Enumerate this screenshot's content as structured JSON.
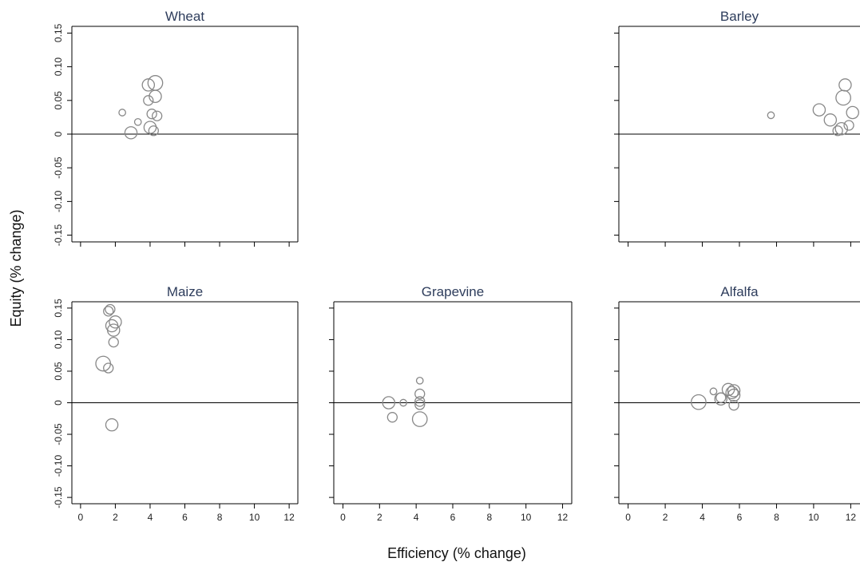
{
  "figure": {
    "xlabel": "Efficiency (% change)",
    "ylabel": "Equity (% change)"
  },
  "chart_data": [
    {
      "type": "scatter",
      "title": "Wheat",
      "xlim": [
        -0.5,
        12.5
      ],
      "ylim": [
        -0.16,
        0.16
      ],
      "zero_line": true,
      "show_x_tick_labels": false,
      "points": [
        {
          "x": 2.4,
          "y": 0.032,
          "size": 1
        },
        {
          "x": 2.9,
          "y": 0.002,
          "size": 3
        },
        {
          "x": 3.3,
          "y": 0.018,
          "size": 1
        },
        {
          "x": 3.9,
          "y": 0.073,
          "size": 3
        },
        {
          "x": 3.9,
          "y": 0.05,
          "size": 2
        },
        {
          "x": 4.1,
          "y": 0.03,
          "size": 2
        },
        {
          "x": 4.0,
          "y": 0.01,
          "size": 3
        },
        {
          "x": 4.2,
          "y": 0.005,
          "size": 2
        },
        {
          "x": 4.3,
          "y": 0.076,
          "size": 4
        },
        {
          "x": 4.3,
          "y": 0.056,
          "size": 3
        },
        {
          "x": 4.4,
          "y": 0.027,
          "size": 2
        }
      ]
    },
    {
      "type": "scatter",
      "title": "Barley",
      "xlim": [
        -0.5,
        12.5
      ],
      "ylim": [
        -0.16,
        0.16
      ],
      "zero_line": true,
      "show_x_tick_labels": false,
      "points": [
        {
          "x": 7.7,
          "y": 0.028,
          "size": 1
        },
        {
          "x": 10.3,
          "y": 0.036,
          "size": 3
        },
        {
          "x": 10.9,
          "y": 0.021,
          "size": 3
        },
        {
          "x": 11.3,
          "y": 0.005,
          "size": 2
        },
        {
          "x": 11.5,
          "y": 0.008,
          "size": 3
        },
        {
          "x": 11.6,
          "y": 0.054,
          "size": 4
        },
        {
          "x": 11.7,
          "y": 0.073,
          "size": 3
        },
        {
          "x": 11.9,
          "y": 0.013,
          "size": 2
        },
        {
          "x": 12.1,
          "y": 0.032,
          "size": 3
        }
      ]
    },
    {
      "type": "scatter",
      "title": "Maize",
      "xlim": [
        -0.5,
        12.5
      ],
      "ylim": [
        -0.16,
        0.16
      ],
      "zero_line": true,
      "show_x_tick_labels": true,
      "points": [
        {
          "x": 1.3,
          "y": 0.062,
          "size": 4
        },
        {
          "x": 1.6,
          "y": 0.055,
          "size": 2
        },
        {
          "x": 1.6,
          "y": 0.145,
          "size": 2
        },
        {
          "x": 1.7,
          "y": 0.148,
          "size": 2
        },
        {
          "x": 1.8,
          "y": 0.122,
          "size": 3
        },
        {
          "x": 1.8,
          "y": -0.035,
          "size": 3
        },
        {
          "x": 1.9,
          "y": 0.115,
          "size": 3
        },
        {
          "x": 1.9,
          "y": 0.096,
          "size": 2
        },
        {
          "x": 2.0,
          "y": 0.128,
          "size": 3
        }
      ]
    },
    {
      "type": "scatter",
      "title": "Grapevine",
      "xlim": [
        -0.5,
        12.5
      ],
      "ylim": [
        -0.16,
        0.16
      ],
      "zero_line": true,
      "show_x_tick_labels": true,
      "points": [
        {
          "x": 2.5,
          "y": 0.0,
          "size": 3
        },
        {
          "x": 2.7,
          "y": -0.023,
          "size": 2
        },
        {
          "x": 3.3,
          "y": 0.0,
          "size": 1
        },
        {
          "x": 4.2,
          "y": 0.035,
          "size": 1
        },
        {
          "x": 4.2,
          "y": 0.014,
          "size": 2
        },
        {
          "x": 4.2,
          "y": 0.002,
          "size": 2
        },
        {
          "x": 4.2,
          "y": -0.003,
          "size": 2
        },
        {
          "x": 4.2,
          "y": -0.026,
          "size": 4
        }
      ]
    },
    {
      "type": "scatter",
      "title": "Alfalfa",
      "xlim": [
        -0.5,
        12.5
      ],
      "ylim": [
        -0.16,
        0.16
      ],
      "zero_line": true,
      "show_x_tick_labels": true,
      "points": [
        {
          "x": 3.8,
          "y": 0.001,
          "size": 4
        },
        {
          "x": 4.6,
          "y": 0.018,
          "size": 1
        },
        {
          "x": 5.0,
          "y": 0.006,
          "size": 3
        },
        {
          "x": 5.0,
          "y": 0.008,
          "size": 2
        },
        {
          "x": 5.4,
          "y": 0.021,
          "size": 3
        },
        {
          "x": 5.6,
          "y": 0.016,
          "size": 3
        },
        {
          "x": 5.7,
          "y": 0.012,
          "size": 3
        },
        {
          "x": 5.7,
          "y": 0.019,
          "size": 3
        },
        {
          "x": 5.7,
          "y": -0.004,
          "size": 2
        }
      ]
    }
  ],
  "axes": {
    "x_ticks": [
      "0",
      "2",
      "4",
      "6",
      "8",
      "10",
      "12"
    ],
    "x_tick_values": [
      0,
      2,
      4,
      6,
      8,
      10,
      12
    ],
    "y_ticks": [
      "0.15",
      "0.10",
      "0.05",
      "0",
      "-0.05",
      "-0.10",
      "-0.15"
    ],
    "y_tick_values": [
      0.15,
      0.1,
      0.05,
      0,
      -0.05,
      -0.1,
      -0.15
    ]
  },
  "colors": {
    "marker": "#888888",
    "axis": "#000000",
    "title": "#2e3d5c"
  }
}
